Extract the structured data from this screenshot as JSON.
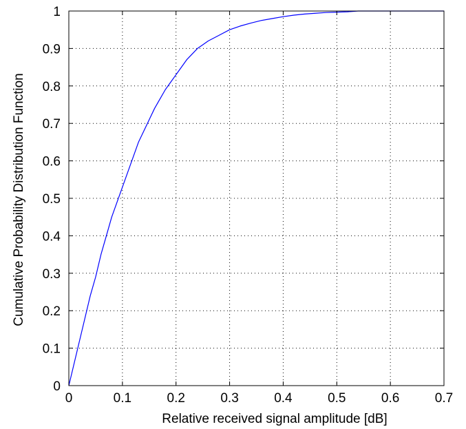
{
  "chart_data": {
    "type": "line",
    "title": "",
    "xlabel": "Relative received signal amplitude  [dB]",
    "ylabel": "Cumulative Probability Distribution Function",
    "xlim": [
      0,
      0.7
    ],
    "ylim": [
      0,
      1
    ],
    "x_ticks": [
      "0",
      "0.1",
      "0.2",
      "0.3",
      "0.4",
      "0.5",
      "0.6",
      "0.7"
    ],
    "y_ticks": [
      "0",
      "0.1",
      "0.2",
      "0.3",
      "0.4",
      "0.5",
      "0.6",
      "0.7",
      "0.8",
      "0.9",
      "1"
    ],
    "grid": true,
    "grid_style": "dotted",
    "line_color": "#0000ff",
    "series": [
      {
        "x": [
          0,
          0.01,
          0.02,
          0.03,
          0.04,
          0.05,
          0.06,
          0.07,
          0.08,
          0.09,
          0.1,
          0.11,
          0.12,
          0.13,
          0.14,
          0.15,
          0.16,
          0.17,
          0.18,
          0.19,
          0.2,
          0.21,
          0.22,
          0.23,
          0.24,
          0.25,
          0.26,
          0.28,
          0.3,
          0.32,
          0.34,
          0.36,
          0.38,
          0.4,
          0.42,
          0.44,
          0.46,
          0.48,
          0.5,
          0.52,
          0.54,
          0.6,
          0.7
        ],
        "y": [
          0,
          0.06,
          0.12,
          0.18,
          0.24,
          0.29,
          0.35,
          0.4,
          0.45,
          0.49,
          0.53,
          0.57,
          0.61,
          0.65,
          0.68,
          0.71,
          0.74,
          0.765,
          0.79,
          0.81,
          0.83,
          0.85,
          0.87,
          0.885,
          0.9,
          0.91,
          0.92,
          0.935,
          0.95,
          0.96,
          0.968,
          0.975,
          0.98,
          0.985,
          0.989,
          0.992,
          0.994,
          0.996,
          0.997,
          0.998,
          1.0,
          1.0,
          1.0
        ]
      }
    ]
  }
}
